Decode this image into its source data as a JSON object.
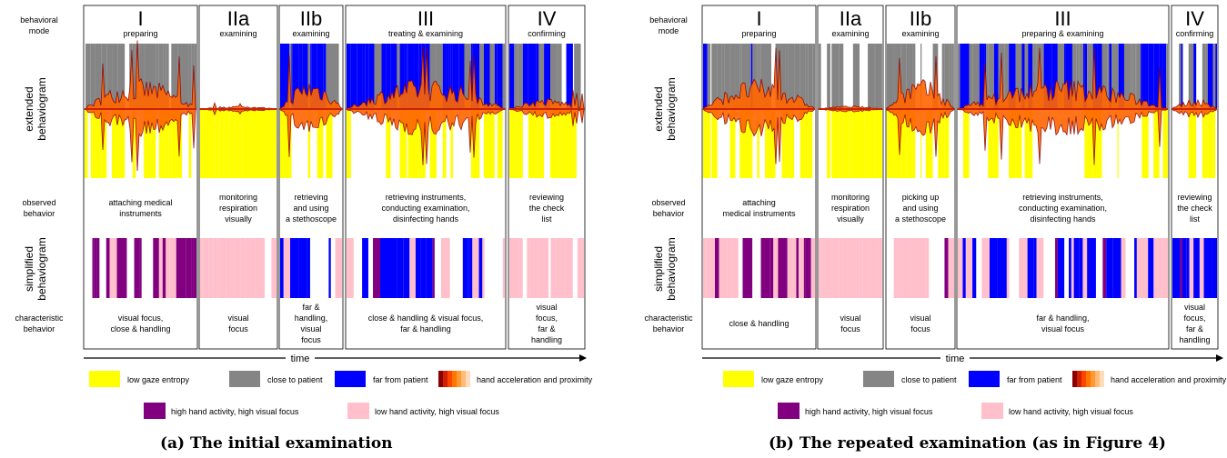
{
  "row_labels": {
    "behavioral_mode": [
      "behavioral",
      "mode"
    ],
    "extended": [
      "extended",
      "behaviogram"
    ],
    "observed": [
      "observed",
      "behavior"
    ],
    "simplified": [
      "simplified",
      "behaviogram"
    ],
    "characteristic": [
      "characteristic",
      "behavior"
    ]
  },
  "time_label": "time",
  "legend": {
    "low_gaze": "low gaze entropy",
    "close": "close to patient",
    "far": "far from patient",
    "hand": "hand acceleration and proximity",
    "high_hand": "high hand activity, high visual focus",
    "low_hand": "low hand activity, high visual focus"
  },
  "colors": {
    "yellow": "#ffff00",
    "gray": "#858585",
    "blue": "#0000ff",
    "purple": "#800080",
    "pink": "#ffc0cb",
    "dark_red": "#8b0000",
    "orange": "#ff6600"
  },
  "panels": [
    {
      "caption": "(a) The initial examination",
      "phases": [
        {
          "roman": "I",
          "mode": "preparing",
          "observed": [
            "attaching  medical",
            "instruments"
          ],
          "characteristic": [
            "visual focus,",
            "close & handling"
          ]
        },
        {
          "roman": "IIa",
          "mode": "examining",
          "observed": [
            "monitoring",
            "respiration",
            "visually"
          ],
          "characteristic": [
            "visual",
            "focus"
          ]
        },
        {
          "roman": "IIb",
          "mode": "examining",
          "observed": [
            "retrieving",
            "and using",
            "a stethoscope"
          ],
          "characteristic": [
            "far &",
            "handling,",
            "visual",
            "focus"
          ]
        },
        {
          "roman": "III",
          "mode": "treating & examining",
          "observed": [
            "retrieving instruments,",
            "conducting examination,",
            "disinfecting hands"
          ],
          "characteristic": [
            "close & handling & visual focus,",
            "far & handling"
          ]
        },
        {
          "roman": "IV",
          "mode": "confirming",
          "observed": [
            "reviewing",
            "the check",
            "list"
          ],
          "characteristic": [
            "visual",
            "focus,",
            "far &",
            "handling"
          ]
        }
      ]
    },
    {
      "caption": "(b) The repeated examination (as in Figure 4)",
      "phases": [
        {
          "roman": "I",
          "mode": "preparing",
          "observed": [
            "attaching",
            "medical instruments"
          ],
          "characteristic": [
            "close & handling"
          ]
        },
        {
          "roman": "IIa",
          "mode": "examining",
          "observed": [
            "monitoring",
            "respiration",
            "visually"
          ],
          "characteristic": [
            "visual",
            "focus"
          ]
        },
        {
          "roman": "IIb",
          "mode": "examining",
          "observed": [
            "picking up",
            "and using",
            "a stethoscope"
          ],
          "characteristic": [
            "visual",
            "focus"
          ]
        },
        {
          "roman": "III",
          "mode": "preparing & examining",
          "observed": [
            "retrieving instruments,",
            "conducting examination,",
            "disinfecting hands"
          ],
          "characteristic": [
            "far & handling,",
            "visual focus"
          ]
        },
        {
          "roman": "IV",
          "mode": "confirming",
          "observed": [
            "reviewing",
            "the check",
            "list"
          ],
          "characteristic": [
            "visual",
            "focus,",
            "far &",
            "handling"
          ]
        }
      ]
    }
  ]
}
